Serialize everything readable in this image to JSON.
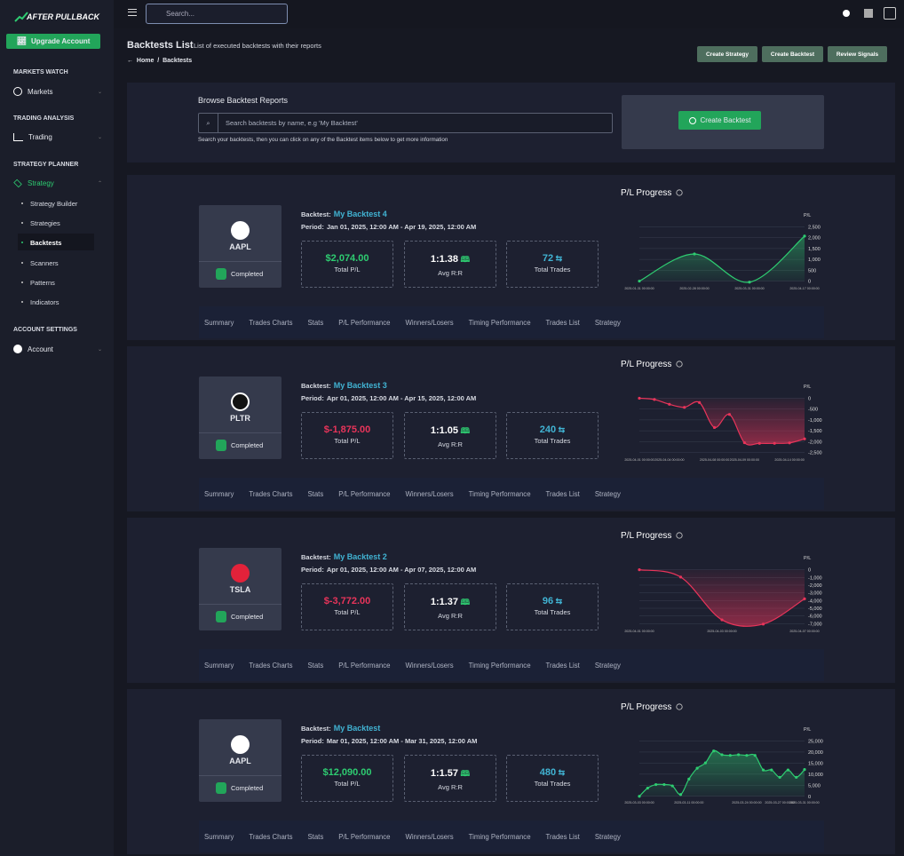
{
  "sidebar": {
    "logo": "AFTER PULLBACK",
    "upgrade": "Upgrade Account",
    "sections": [
      {
        "title": "MARKETS WATCH",
        "items": [
          "Markets"
        ]
      },
      {
        "title": "TRADING ANALYSIS",
        "items": [
          "Trading"
        ]
      },
      {
        "title": "STRATEGY PLANNER",
        "items": [
          "Strategy"
        ],
        "children": [
          "Strategy Builder",
          "Strategies",
          "Backtests",
          "Scanners",
          "Patterns",
          "Indicators"
        ]
      },
      {
        "title": "ACCOUNT SETTINGS",
        "items": [
          "Account"
        ]
      }
    ]
  },
  "topbar": {
    "search_placeholder": "Search..."
  },
  "header": {
    "title": "Backtests List",
    "subtitle": "List of executed backtests with their reports",
    "breadcrumb": [
      "Home",
      "Backtests"
    ],
    "buttons": [
      "Create Strategy",
      "Create Backtest",
      "Review Signals"
    ]
  },
  "browse": {
    "title": "Browse Backtest Reports",
    "search_placeholder": "Search backtests by name, e.g 'My Backtest'",
    "help": "Search your backtests, then you can click on any of the Backtest items below to get more information",
    "button": "Create Backtest"
  },
  "backtests": [
    {
      "ticker": "AAPL",
      "status": "Completed",
      "backtest_label": "Backtest:",
      "name": "My Backtest 4",
      "period_label": "Period:",
      "period": "Jan 01, 2025, 12:00 AM - Apr 19, 2025, 12:00 AM",
      "stats": [
        {
          "value": "$2,074.00",
          "label": "Total P/L"
        },
        {
          "value": "1:1.38",
          "label": "Avg R:R"
        },
        {
          "value": "72",
          "label": "Total Trades"
        }
      ],
      "tabs": [
        "Summary",
        "Trades Charts",
        "Stats",
        "P/L Performance",
        "Winners/Losers",
        "Timing Performance",
        "Trades List",
        "Strategy"
      ],
      "chart": {
        "type": "area",
        "title": "P/L Progress",
        "y_label": "P/L",
        "color": "#2ecc71",
        "categories": [
          "2025-01-31 00:00:00",
          "2025-02-28 00:00:00",
          "2025-03-31 00:00:00",
          "2025-04-17 00:00:00"
        ],
        "values": [
          0,
          1250,
          -50,
          2074
        ],
        "ylim": [
          -100,
          2600
        ],
        "yticks": [
          0,
          500,
          {
            "value": 1000,
            "label": "1,000"
          },
          {
            "value": 1500,
            "label": "1,500"
          },
          {
            "value": 2000,
            "label": "2,000"
          },
          {
            "value": 2500,
            "label": "2,500"
          }
        ]
      }
    },
    {
      "ticker": "PLTR",
      "status": "Completed",
      "backtest_label": "Backtest:",
      "name": "My Backtest 3",
      "period_label": "Period:",
      "period": "Apr 01, 2025, 12:00 AM - Apr 15, 2025, 12:00 AM",
      "stats": [
        {
          "value": "$-1,875.00",
          "label": "Total P/L"
        },
        {
          "value": "1:1.05",
          "label": "Avg R:R"
        },
        {
          "value": "240",
          "label": "Total Trades"
        }
      ],
      "tabs": [
        "Summary",
        "Trades Charts",
        "Stats",
        "P/L Performance",
        "Winners/Losers",
        "Timing Performance",
        "Trades List",
        "Strategy"
      ],
      "chart": {
        "type": "area",
        "title": "P/L Progress",
        "y_label": "P/L",
        "color": "#e8345a",
        "categories": [
          "2025-04-01 00:00:00",
          null,
          "2025-04-04 00:00:00",
          null,
          null,
          "2025-04-08 00:00:00",
          null,
          "2025-04-09 00:00:00",
          null,
          null,
          "2025-04-14 00:00:00",
          null
        ],
        "values": [
          0,
          -60,
          -280,
          -420,
          -200,
          -1350,
          -750,
          -2050,
          -2080,
          -2080,
          -2060,
          -1875
        ],
        "ylim": [
          -2600,
          100
        ],
        "yticks": [
          0,
          -500,
          {
            "value": -1000,
            "label": "-1,000"
          },
          {
            "value": -1500,
            "label": "-1,500"
          },
          {
            "value": -2000,
            "label": "-2,000"
          },
          {
            "value": -2500,
            "label": "-2,500"
          }
        ]
      }
    },
    {
      "ticker": "TSLA",
      "status": "Completed",
      "backtest_label": "Backtest:",
      "name": "My Backtest 2",
      "period_label": "Period:",
      "period": "Apr 01, 2025, 12:00 AM - Apr 07, 2025, 12:00 AM",
      "stats": [
        {
          "value": "$-3,772.00",
          "label": "Total P/L"
        },
        {
          "value": "1:1.37",
          "label": "Avg R:R"
        },
        {
          "value": "96",
          "label": "Total Trades"
        }
      ],
      "tabs": [
        "Summary",
        "Trades Charts",
        "Stats",
        "P/L Performance",
        "Winners/Losers",
        "Timing Performance",
        "Trades List",
        "Strategy"
      ],
      "chart": {
        "type": "area",
        "title": "P/L Progress",
        "y_label": "P/L",
        "color": "#e8345a",
        "categories": [
          "2025-04-01 00:00:00",
          null,
          "2025-04-03 00:00:00",
          null,
          "2025-04-07 00:00:00"
        ],
        "values": [
          0,
          -950,
          -6500,
          -7050,
          -3772
        ],
        "ylim": [
          -7300,
          300
        ],
        "yticks": [
          0,
          {
            "value": -1000,
            "label": "-1,000"
          },
          {
            "value": -2000,
            "label": "-2,000"
          },
          {
            "value": -3000,
            "label": "-3,000"
          },
          {
            "value": -4000,
            "label": "-4,000"
          },
          {
            "value": -5000,
            "label": "-5,000"
          },
          {
            "value": -6000,
            "label": "-6,000"
          },
          {
            "value": -7000,
            "label": "-7,000"
          }
        ]
      }
    },
    {
      "ticker": "AAPL",
      "status": "Completed",
      "backtest_label": "Backtest:",
      "name": "My Backtest",
      "period_label": "Period:",
      "period": "Mar 01, 2025, 12:00 AM - Mar 31, 2025, 12:00 AM",
      "stats": [
        {
          "value": "$12,090.00",
          "label": "Total P/L"
        },
        {
          "value": "1:1.57",
          "label": "Avg R:R"
        },
        {
          "value": "480",
          "label": "Total Trades"
        }
      ],
      "tabs": [
        "Summary",
        "Trades Charts",
        "Stats",
        "P/L Performance",
        "Winners/Losers",
        "Timing Performance",
        "Trades List",
        "Strategy"
      ],
      "chart": {
        "type": "area",
        "title": "P/L Progress",
        "y_label": "P/L",
        "color": "#2ecc71",
        "categories": [
          "2025-03-03 00:00:00",
          null,
          null,
          null,
          null,
          null,
          "2025-03-11 00:00:00",
          null,
          null,
          null,
          null,
          null,
          null,
          "2025-03-24 00:00:00",
          null,
          null,
          null,
          "2025-03-27 00:00:00",
          null,
          null,
          "2025-03-31 00:00:00"
        ],
        "values": [
          0,
          3700,
          5300,
          5300,
          4700,
          800,
          7800,
          12700,
          15100,
          20500,
          18800,
          18500,
          18800,
          18500,
          18500,
          11900,
          11900,
          8600,
          11900,
          8600,
          12090
        ],
        "ylim": [
          -500,
          26000
        ],
        "yticks": [
          0,
          {
            "value": 5000,
            "label": "5,000"
          },
          {
            "value": 10000,
            "label": "10,000"
          },
          {
            "value": 15000,
            "label": "15,000"
          },
          {
            "value": 20000,
            "label": "20,000"
          },
          {
            "value": 25000,
            "label": "25,000"
          }
        ]
      }
    }
  ]
}
